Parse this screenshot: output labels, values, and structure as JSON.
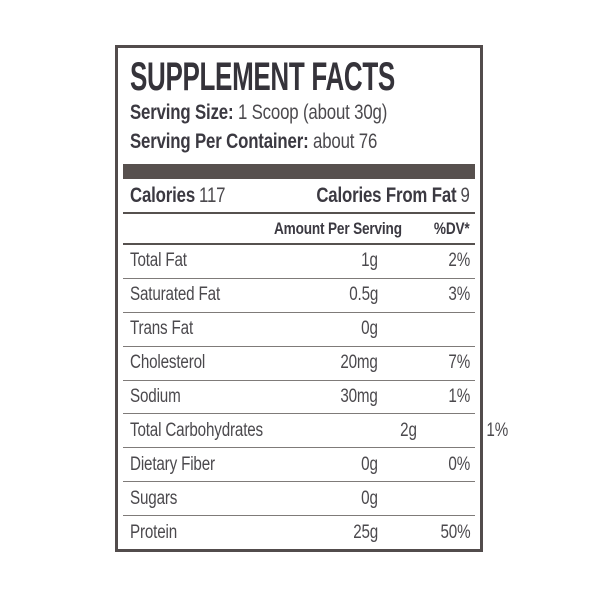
{
  "label": {
    "title": "SUPPLEMENT FACTS",
    "serving_size_label": "Serving Size:",
    "serving_size_value": "1 Scoop (about 30g)",
    "servings_per_container_label": "Serving Per Container:",
    "servings_per_container_value": "about 76",
    "calories_label": "Calories",
    "calories_value": "117",
    "calories_from_fat_label": "Calories From Fat",
    "calories_from_fat_value": "9",
    "columns": {
      "amount": "Amount Per Serving",
      "dv": "%DV*"
    },
    "rows": [
      {
        "name": "Total Fat",
        "amount": "1g",
        "dv": "2%"
      },
      {
        "name": "Saturated Fat",
        "amount": "0.5g",
        "dv": "3%"
      },
      {
        "name": "Trans Fat",
        "amount": "0g",
        "dv": ""
      },
      {
        "name": "Cholesterol",
        "amount": "20mg",
        "dv": "7%"
      },
      {
        "name": "Sodium",
        "amount": "30mg",
        "dv": "1%"
      },
      {
        "name": "Total Carbohydrates",
        "amount": "2g",
        "dv": "1%"
      },
      {
        "name": "Dietary Fiber",
        "amount": "0g",
        "dv": "0%"
      },
      {
        "name": "Sugars",
        "amount": "0g",
        "dv": ""
      },
      {
        "name": "Protein",
        "amount": "25g",
        "dv": "50%"
      }
    ],
    "colors": {
      "bar": "#57504e",
      "border": "#524c4c",
      "title": "#35333a",
      "text": "#4b494d",
      "text_bold": "#3b3941",
      "rule_dark": "#56514f",
      "rule_light": "#7f7b79"
    }
  }
}
